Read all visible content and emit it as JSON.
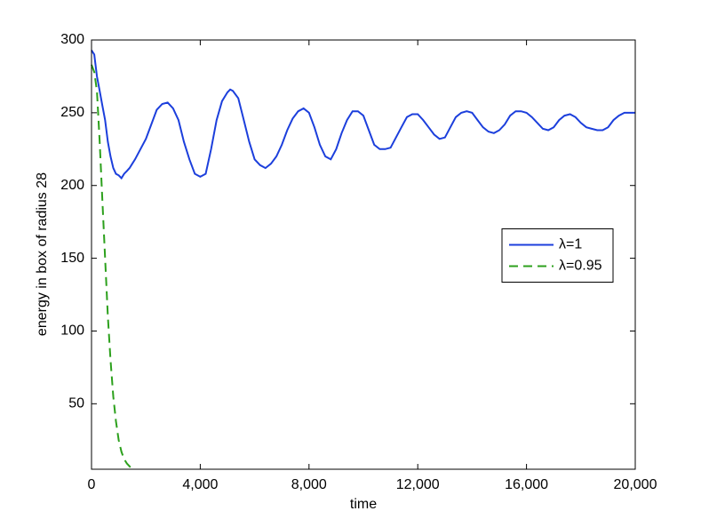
{
  "chart_data": {
    "type": "line",
    "xlabel": "time",
    "ylabel": "energy in box of radius 28",
    "xlim": [
      0,
      20000
    ],
    "ylim": [
      5,
      300
    ],
    "xticks": [
      0,
      {
        "value": 4000,
        "label": "4,000"
      },
      {
        "value": 8000,
        "label": "8,000"
      },
      {
        "value": 12000,
        "label": "12,000"
      },
      {
        "value": 16000,
        "label": "16,000"
      },
      {
        "value": 20000,
        "label": "20,000"
      }
    ],
    "yticks": [
      50,
      100,
      150,
      200,
      250,
      300
    ],
    "grid": false,
    "legend": "east",
    "series": [
      {
        "name": "λ=1",
        "color": "#1c3fdc",
        "linestyle": "solid",
        "x": [
          0,
          100,
          200,
          300,
          400,
          500,
          600,
          700,
          800,
          900,
          1000,
          1100,
          1200,
          1300,
          1400,
          1500,
          1600,
          1800,
          2000,
          2200,
          2400,
          2600,
          2800,
          3000,
          3200,
          3400,
          3600,
          3800,
          4000,
          4200,
          4400,
          4600,
          4800,
          5000,
          5100,
          5200,
          5400,
          5600,
          5800,
          6000,
          6200,
          6400,
          6600,
          6800,
          7000,
          7200,
          7400,
          7600,
          7800,
          8000,
          8200,
          8400,
          8600,
          8800,
          9000,
          9200,
          9400,
          9600,
          9800,
          10000,
          10200,
          10400,
          10600,
          10800,
          11000,
          11200,
          11400,
          11600,
          11800,
          12000,
          12200,
          12400,
          12600,
          12800,
          13000,
          13200,
          13400,
          13600,
          13800,
          14000,
          14200,
          14400,
          14600,
          14800,
          15000,
          15200,
          15400,
          15600,
          15800,
          16000,
          16200,
          16400,
          16600,
          16800,
          17000,
          17200,
          17400,
          17600,
          17800,
          18000,
          18200,
          18400,
          18600,
          18800,
          19000,
          19200,
          19400,
          19600,
          19800,
          20000
        ],
        "values": [
          293,
          290,
          275,
          265,
          255,
          245,
          230,
          220,
          212,
          208,
          207,
          205,
          208,
          210,
          212,
          215,
          218,
          225,
          232,
          242,
          252,
          256,
          257,
          253,
          245,
          230,
          218,
          208,
          206,
          208,
          225,
          245,
          258,
          264,
          266,
          265,
          260,
          245,
          230,
          218,
          214,
          212,
          215,
          220,
          228,
          238,
          246,
          251,
          253,
          250,
          240,
          228,
          220,
          218,
          225,
          236,
          245,
          251,
          251,
          248,
          238,
          228,
          225,
          225,
          226,
          233,
          240,
          247,
          249,
          249,
          245,
          240,
          235,
          232,
          233,
          240,
          247,
          250,
          251,
          250,
          245,
          240,
          237,
          236,
          238,
          242,
          248,
          251,
          251,
          250,
          247,
          243,
          239,
          238,
          240,
          245,
          248,
          249,
          247,
          243,
          240,
          239,
          238,
          238,
          240,
          245,
          248,
          250,
          250,
          250
        ]
      },
      {
        "name": "λ=0.95",
        "color": "#2ca01c",
        "linestyle": "dashed",
        "x": [
          0,
          100,
          200,
          300,
          400,
          500,
          600,
          700,
          800,
          900,
          1000,
          1100,
          1200,
          1300,
          1400,
          1450
        ],
        "values": [
          283,
          278,
          265,
          230,
          190,
          150,
          110,
          80,
          55,
          38,
          25,
          17,
          12,
          9,
          7,
          6
        ]
      }
    ]
  }
}
